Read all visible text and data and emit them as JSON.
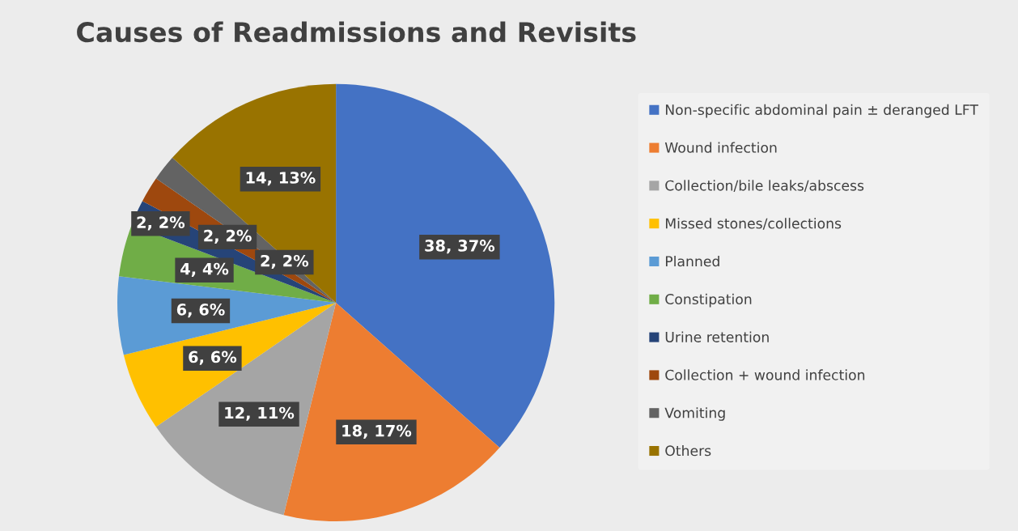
{
  "chart_data": {
    "type": "pie",
    "title": "Causes of Readmissions and Revisits",
    "categories": [
      "Non-specific abdominal pain ± deranged LFT",
      "Wound infection",
      "Collection/bile leaks/abscess",
      "Missed stones/collections",
      "Planned",
      "Constipation",
      "Urine retention",
      "Collection + wound infection",
      "Vomiting",
      "Others"
    ],
    "values": [
      38,
      18,
      12,
      6,
      6,
      4,
      2,
      2,
      2,
      14
    ],
    "value_labels": [
      "38, 37%",
      "18, 17%",
      "12, 11%",
      "6, 6%",
      "6, 6%",
      "4, 4%",
      "2, 2%",
      "2, 2%",
      "2, 2%",
      "14, 13%"
    ],
    "colors": [
      "#4472c4",
      "#ed7d31",
      "#a5a5a5",
      "#ffc000",
      "#5b9bd5",
      "#70ad47",
      "#264478",
      "#9e480e",
      "#636363",
      "#997300"
    ],
    "legend": "right"
  }
}
